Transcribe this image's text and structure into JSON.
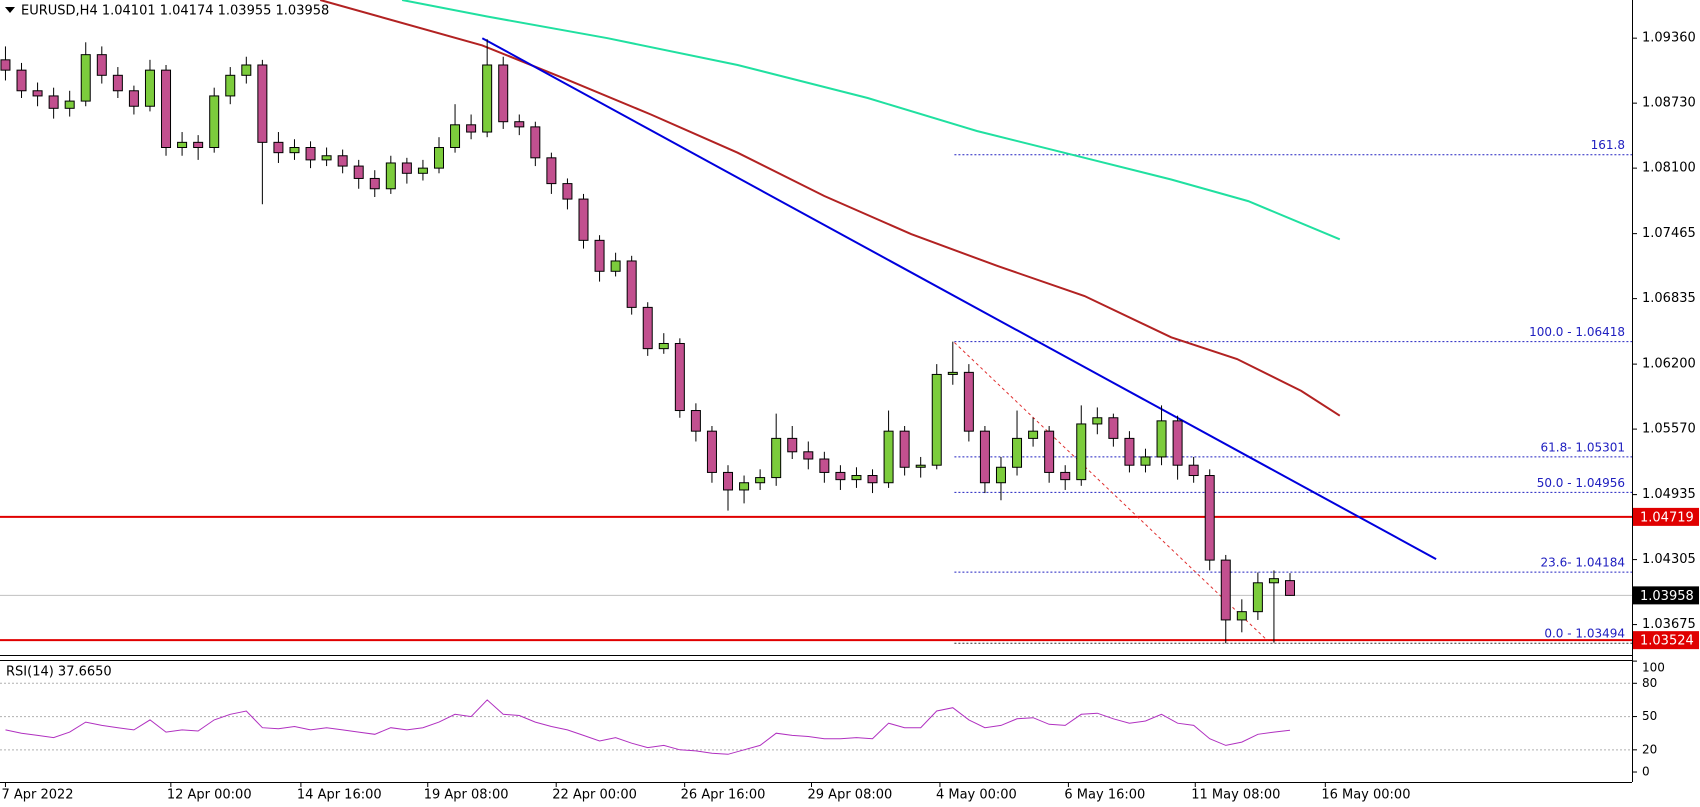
{
  "chart_data": {
    "type": "candlestick",
    "title": "EURUSD,H4  1.04101 1.04174 1.03955 1.03958",
    "xlim": [
      -0.34,
      101.3
    ],
    "xticks": [
      {
        "value": 0,
        "label": "7 Apr 2022"
      },
      {
        "value": 10.3,
        "label": "12 Apr 00:00"
      },
      {
        "value": 18.4,
        "label": "14 Apr 16:00"
      },
      {
        "value": 26.3,
        "label": "19 Apr 08:00"
      },
      {
        "value": 34.3,
        "label": "22 Apr 00:00"
      },
      {
        "value": 42.3,
        "label": "26 Apr 16:00"
      },
      {
        "value": 50.2,
        "label": "29 Apr 08:00"
      },
      {
        "value": 58.2,
        "label": "4 May 00:00"
      },
      {
        "value": 66.2,
        "label": "6 May 16:00"
      },
      {
        "value": 74.1,
        "label": "11 May 08:00"
      },
      {
        "value": 82.2,
        "label": "16 May 00:00"
      }
    ],
    "ylim": [
      1.0338,
      1.0973
    ],
    "yticks": [
      {
        "value": 1.0936,
        "label": "1.09360"
      },
      {
        "value": 1.0873,
        "label": "1.08730"
      },
      {
        "value": 1.081,
        "label": "1.08100"
      },
      1.07465,
      1.06835,
      {
        "value": 1.062,
        "label": "1.06200"
      },
      {
        "value": 1.0557,
        "label": "1.05570"
      },
      1.04935,
      1.04305,
      1.03675
    ],
    "bull_color": "#7ccc3c",
    "bear_color": "#c2508f",
    "candles": {
      "open": [
        1.0915,
        1.0905,
        1.0885,
        1.088,
        1.0868,
        1.0875,
        1.092,
        1.09,
        1.0885,
        1.087,
        1.0905,
        1.083,
        1.0835,
        1.083,
        1.088,
        1.09,
        1.091,
        1.0835,
        1.0825,
        1.083,
        1.0818,
        1.0822,
        1.0812,
        1.08,
        1.079,
        1.0815,
        1.0805,
        1.081,
        1.083,
        1.0852,
        1.0845,
        1.091,
        1.0855,
        1.085,
        1.082,
        1.0795,
        1.078,
        1.074,
        1.071,
        1.072,
        1.0675,
        1.0635,
        1.064,
        1.0575,
        1.0555,
        1.0515,
        1.0498,
        1.0505,
        1.051,
        1.0548,
        1.0535,
        1.0528,
        1.0515,
        1.0508,
        1.0512,
        1.0505,
        1.0555,
        1.052,
        1.0522,
        1.061,
        1.0612,
        1.0555,
        1.0505,
        1.052,
        1.0548,
        1.0555,
        1.0515,
        1.0508,
        1.0562,
        1.0568,
        1.0548,
        1.0522,
        1.053,
        1.0565,
        1.0522,
        1.0512,
        1.043,
        1.0372,
        1.038,
        1.0408,
        1.04101
      ],
      "high": [
        1.0928,
        1.0912,
        1.0893,
        1.0888,
        1.0885,
        1.0932,
        1.0928,
        1.0908,
        1.089,
        1.0915,
        1.091,
        1.0845,
        1.0842,
        1.0888,
        1.0908,
        1.0918,
        1.0915,
        1.0845,
        1.0838,
        1.0836,
        1.083,
        1.0828,
        1.0818,
        1.0808,
        1.0822,
        1.082,
        1.0818,
        1.084,
        1.0872,
        1.0862,
        1.0935,
        1.0918,
        1.0862,
        1.0855,
        1.0825,
        1.08,
        1.0785,
        1.0745,
        1.0728,
        1.0725,
        1.068,
        1.065,
        1.0645,
        1.0582,
        1.056,
        1.0522,
        1.0512,
        1.0518,
        1.0572,
        1.056,
        1.0545,
        1.0535,
        1.0522,
        1.052,
        1.0518,
        1.0575,
        1.056,
        1.053,
        1.062,
        1.06418,
        1.062,
        1.056,
        1.053,
        1.0575,
        1.0568,
        1.056,
        1.0522,
        1.058,
        1.0578,
        1.0572,
        1.0555,
        1.0538,
        1.058,
        1.057,
        1.053,
        1.0518,
        1.0435,
        1.0392,
        1.0418,
        1.042,
        1.04174
      ],
      "low": [
        1.0895,
        1.0878,
        1.087,
        1.0858,
        1.086,
        1.087,
        1.0892,
        1.0878,
        1.0862,
        1.0865,
        1.0822,
        1.0822,
        1.0818,
        1.0825,
        1.0872,
        1.0892,
        1.0775,
        1.0815,
        1.0818,
        1.081,
        1.0812,
        1.0805,
        1.079,
        1.0782,
        1.0785,
        1.0795,
        1.0798,
        1.0805,
        1.0825,
        1.0838,
        1.084,
        1.0848,
        1.0842,
        1.0812,
        1.0785,
        1.077,
        1.0732,
        1.07,
        1.0705,
        1.0668,
        1.0628,
        1.063,
        1.0568,
        1.0545,
        1.0505,
        1.0478,
        1.0485,
        1.0498,
        1.0502,
        1.0528,
        1.0518,
        1.0505,
        1.0498,
        1.05,
        1.0495,
        1.05,
        1.0512,
        1.051,
        1.0518,
        1.06,
        1.0545,
        1.0495,
        1.0488,
        1.0512,
        1.054,
        1.0505,
        1.0498,
        1.0502,
        1.0552,
        1.054,
        1.0515,
        1.0515,
        1.0522,
        1.0508,
        1.0505,
        1.042,
        1.03494,
        1.036,
        1.0372,
        1.035,
        1.03955
      ],
      "close": [
        1.0905,
        1.0885,
        1.088,
        1.0868,
        1.0875,
        1.092,
        1.09,
        1.0885,
        1.087,
        1.0905,
        1.083,
        1.0835,
        1.083,
        1.088,
        1.09,
        1.091,
        1.0835,
        1.0825,
        1.083,
        1.0818,
        1.0822,
        1.0812,
        1.08,
        1.079,
        1.0815,
        1.0805,
        1.081,
        1.083,
        1.0852,
        1.0845,
        1.091,
        1.0855,
        1.085,
        1.082,
        1.0795,
        1.078,
        1.074,
        1.071,
        1.072,
        1.0675,
        1.0635,
        1.064,
        1.0575,
        1.0555,
        1.0515,
        1.0498,
        1.0505,
        1.051,
        1.0548,
        1.0535,
        1.0528,
        1.0515,
        1.0508,
        1.0512,
        1.0505,
        1.0555,
        1.052,
        1.0522,
        1.061,
        1.0612,
        1.0555,
        1.0505,
        1.052,
        1.0548,
        1.0555,
        1.0515,
        1.0508,
        1.0562,
        1.0568,
        1.0548,
        1.0522,
        1.053,
        1.0565,
        1.0522,
        1.0512,
        1.043,
        1.0372,
        1.038,
        1.0408,
        1.0412,
        1.03958
      ]
    },
    "moving_averages": [
      {
        "color": "#b22222",
        "x": [
          19.6,
          29.7,
          34.8,
          40.2,
          45.6,
          51.0,
          56.4,
          61.8,
          67.2,
          72.6,
          76.7,
          80.7,
          83.1
        ],
        "values": [
          1.0973,
          1.0929,
          1.0897,
          1.0862,
          1.0825,
          1.0783,
          1.0746,
          1.0715,
          1.0686,
          1.0646,
          1.0625,
          1.0594,
          1.057
        ]
      },
      {
        "color": "#20e0a0",
        "x": [
          24.7,
          30.0,
          37.5,
          45.6,
          53.7,
          60.5,
          67.2,
          72.6,
          77.4,
          83.1
        ],
        "values": [
          1.0973,
          1.0957,
          1.0936,
          1.091,
          1.0878,
          1.0846,
          1.082,
          1.0799,
          1.0778,
          1.0741
        ]
      }
    ],
    "trendlines": [
      {
        "color": "#0000dd",
        "dash": false,
        "x": [
          29.7,
          89.1
        ],
        "values": [
          1.0936,
          1.0431
        ]
      },
      {
        "color": "#e03030",
        "dash": true,
        "x": [
          59.1,
          78.6
        ],
        "values": [
          1.0641,
          1.0352
        ]
      }
    ],
    "fibonacci": {
      "x": 59.1,
      "levels": [
        1.0823,
        1.06418,
        1.05301,
        1.04956,
        1.04184,
        1.03494
      ],
      "labels": [
        "161.8",
        "100.0 - 1.06418",
        "61.8- 1.05301",
        "50.0 - 1.04956",
        "23.6- 1.04184",
        "0.0 - 1.03494"
      ],
      "line_colors": [
        "#2020c0",
        "#2020c0",
        "#2020c0",
        "#2020c0",
        "#2020c0",
        "#303030"
      ],
      "text_color": "#2020c0"
    },
    "levels": [
      {
        "value": 1.04719,
        "color": "#e00000",
        "label_color": "#e00000"
      },
      {
        "value": 1.03524,
        "color": "#e00000",
        "label_color": "#e00000"
      },
      {
        "value": 1.03958,
        "color": "#c0c0c0",
        "label_color": "#000000"
      }
    ],
    "rsi": {
      "title": "RSI(14) 37.6650",
      "color": "#b030c0",
      "ylim": [
        -9,
        101
      ],
      "yticks": [
        100,
        80,
        50,
        20,
        0
      ],
      "values": [
        38,
        35,
        33,
        31,
        36,
        45,
        42,
        40,
        38,
        47,
        36,
        38,
        37,
        47,
        52,
        55,
        40,
        39,
        41,
        38,
        40,
        38,
        36,
        34,
        40,
        38,
        40,
        45,
        52,
        50,
        65,
        52,
        51,
        45,
        41,
        38,
        33,
        28,
        31,
        26,
        22,
        24,
        20,
        19,
        17,
        16,
        20,
        24,
        35,
        33,
        32,
        30,
        30,
        31,
        30,
        44,
        40,
        40,
        55,
        58,
        47,
        40,
        42,
        48,
        49,
        43,
        42,
        52,
        53,
        48,
        44,
        46,
        52,
        44,
        42,
        30,
        24,
        27,
        34,
        36,
        37.665
      ]
    }
  }
}
